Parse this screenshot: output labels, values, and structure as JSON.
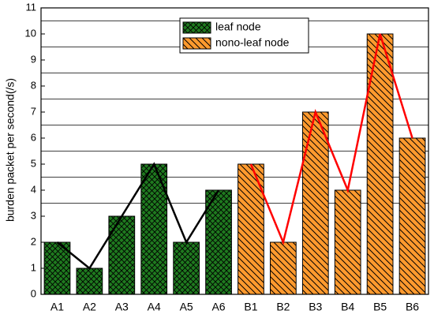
{
  "chart_data": {
    "type": "bar",
    "y_label": "burden packet per second(/s)",
    "categories": [
      "A1",
      "A2",
      "A3",
      "A4",
      "A5",
      "A6",
      "B1",
      "B2",
      "B3",
      "B4",
      "B5",
      "B6"
    ],
    "series": [
      {
        "name": "leaf node",
        "color": "#1f7a1f",
        "line_color": "#000000",
        "pattern": "crosshatch",
        "values": [
          2,
          1,
          3,
          5,
          2,
          4,
          null,
          null,
          null,
          null,
          null,
          null
        ]
      },
      {
        "name": "nono-leaf node",
        "color": "#ff9a2e",
        "line_color": "#ff0000",
        "pattern": "diagonal",
        "values": [
          null,
          null,
          null,
          null,
          null,
          null,
          5,
          2,
          7,
          4,
          10,
          6
        ]
      }
    ],
    "ylim": [
      0,
      11
    ],
    "yticks": [
      0,
      1,
      2,
      3,
      4,
      5,
      6,
      7,
      8,
      9,
      10,
      11
    ],
    "minor_grid": [
      3.5,
      4.5,
      5.5,
      6.5,
      7.5,
      8.5,
      9.5,
      10.5
    ],
    "legend": "top"
  }
}
